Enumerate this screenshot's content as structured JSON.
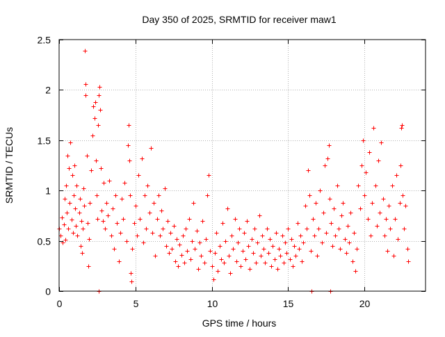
{
  "chart_data": {
    "type": "scatter",
    "title": "Day 350 of 2025, SRMTID for receiver maw1",
    "xlabel": "GPS time / hours",
    "ylabel": "SRMTID / TECUs",
    "xlim": [
      0,
      24
    ],
    "ylim": [
      0,
      2.5
    ],
    "x_ticks": [
      0,
      5,
      10,
      15,
      20
    ],
    "y_ticks": [
      0,
      0.5,
      1,
      1.5,
      2,
      2.5
    ],
    "x_tick_labels": [
      "0",
      "5",
      "10",
      "15",
      "20"
    ],
    "y_tick_labels": [
      "0",
      "0.5",
      "1",
      "1.5",
      "2",
      "2.5"
    ],
    "grid": true,
    "marker": "+",
    "series": [
      {
        "name": "SRMTID",
        "color": "#ff0000",
        "points": [
          [
            0.0,
            0.62
          ],
          [
            0.1,
            0.55
          ],
          [
            0.2,
            0.73
          ],
          [
            0.25,
            0.48
          ],
          [
            0.3,
            0.66
          ],
          [
            0.35,
            0.92
          ],
          [
            0.4,
            0.51
          ],
          [
            0.45,
            1.05
          ],
          [
            0.5,
            0.78
          ],
          [
            0.55,
            1.35
          ],
          [
            0.6,
            0.62
          ],
          [
            0.65,
            1.22
          ],
          [
            0.7,
            0.88
          ],
          [
            0.75,
            1.48
          ],
          [
            0.8,
            0.71
          ],
          [
            0.85,
            1.15
          ],
          [
            0.9,
            0.58
          ],
          [
            0.95,
            0.95
          ],
          [
            1.0,
            1.25
          ],
          [
            1.05,
            0.82
          ],
          [
            1.1,
            0.65
          ],
          [
            1.15,
            1.05
          ],
          [
            1.2,
            0.55
          ],
          [
            1.3,
            0.78
          ],
          [
            1.35,
            0.92
          ],
          [
            1.4,
            0.45
          ],
          [
            1.45,
            0.7
          ],
          [
            1.5,
            0.38
          ],
          [
            1.55,
            0.62
          ],
          [
            1.6,
            1.02
          ],
          [
            1.65,
            0.85
          ],
          [
            1.7,
            2.39
          ],
          [
            1.72,
            2.06
          ],
          [
            1.75,
            1.95
          ],
          [
            1.8,
            1.35
          ],
          [
            1.85,
            0.68
          ],
          [
            1.9,
            0.25
          ],
          [
            1.95,
            0.52
          ],
          [
            2.0,
            0.88
          ],
          [
            2.1,
            1.2
          ],
          [
            2.2,
            1.55
          ],
          [
            2.25,
            1.84
          ],
          [
            2.3,
            1.72
          ],
          [
            2.35,
            1.88
          ],
          [
            2.4,
            1.3
          ],
          [
            2.45,
            0.95
          ],
          [
            2.5,
            0.72
          ],
          [
            2.55,
            1.65
          ],
          [
            2.6,
            1.95
          ],
          [
            2.65,
            2.03
          ],
          [
            2.7,
            1.8
          ],
          [
            2.75,
            1.22
          ],
          [
            2.8,
            0.8
          ],
          [
            2.85,
            0.7
          ],
          [
            2.9,
            1.08
          ],
          [
            3.0,
            0.62
          ],
          [
            3.1,
            0.88
          ],
          [
            3.2,
            0.75
          ],
          [
            3.3,
            1.1
          ],
          [
            3.4,
            0.55
          ],
          [
            3.5,
            0.82
          ],
          [
            3.6,
            0.42
          ],
          [
            3.7,
            0.95
          ],
          [
            3.8,
            0.68
          ],
          [
            3.9,
            0.3
          ],
          [
            4.0,
            0.58
          ],
          [
            4.1,
            0.92
          ],
          [
            4.2,
            0.72
          ],
          [
            4.3,
            1.08
          ],
          [
            4.4,
            0.5
          ],
          [
            4.5,
            1.45
          ],
          [
            4.55,
            1.65
          ],
          [
            4.6,
            1.3
          ],
          [
            4.65,
            0.95
          ],
          [
            4.7,
            0.18
          ],
          [
            4.75,
            0.1
          ],
          [
            4.8,
            0.42
          ],
          [
            4.9,
            0.68
          ],
          [
            5.0,
            0.85
          ],
          [
            5.1,
            0.55
          ],
          [
            5.2,
            1.15
          ],
          [
            5.3,
            0.72
          ],
          [
            5.4,
            1.32
          ],
          [
            5.5,
            0.48
          ],
          [
            5.6,
            0.95
          ],
          [
            5.7,
            0.62
          ],
          [
            5.8,
            1.05
          ],
          [
            5.9,
            0.78
          ],
          [
            6.0,
            1.42
          ],
          [
            6.1,
            0.58
          ],
          [
            6.2,
            0.88
          ],
          [
            6.3,
            0.35
          ],
          [
            6.4,
            0.72
          ],
          [
            6.5,
            0.95
          ],
          [
            6.6,
            0.55
          ],
          [
            6.7,
            0.8
          ],
          [
            6.8,
            0.62
          ],
          [
            6.9,
            1.02
          ],
          [
            7.0,
            0.45
          ],
          [
            7.1,
            0.7
          ],
          [
            7.2,
            0.38
          ],
          [
            7.3,
            0.58
          ],
          [
            7.4,
            0.42
          ],
          [
            7.5,
            0.65
          ],
          [
            7.6,
            0.3
          ],
          [
            7.7,
            0.52
          ],
          [
            7.8,
            0.25
          ],
          [
            7.9,
            0.46
          ],
          [
            8.0,
            0.36
          ],
          [
            8.1,
            0.55
          ],
          [
            8.2,
            0.28
          ],
          [
            8.3,
            0.62
          ],
          [
            8.4,
            0.4
          ],
          [
            8.5,
            0.72
          ],
          [
            8.6,
            0.32
          ],
          [
            8.7,
            0.5
          ],
          [
            8.8,
            0.88
          ],
          [
            8.9,
            0.42
          ],
          [
            9.0,
            0.6
          ],
          [
            9.1,
            0.22
          ],
          [
            9.2,
            0.48
          ],
          [
            9.3,
            0.35
          ],
          [
            9.4,
            0.7
          ],
          [
            9.5,
            0.28
          ],
          [
            9.6,
            0.52
          ],
          [
            9.7,
            0.95
          ],
          [
            9.8,
            1.15
          ],
          [
            9.9,
            0.4
          ],
          [
            10.0,
            0.25
          ],
          [
            10.1,
            0.12
          ],
          [
            10.2,
            0.38
          ],
          [
            10.3,
            0.58
          ],
          [
            10.4,
            0.2
          ],
          [
            10.5,
            0.45
          ],
          [
            10.6,
            0.32
          ],
          [
            10.7,
            0.68
          ],
          [
            10.8,
            0.28
          ],
          [
            10.9,
            0.5
          ],
          [
            11.0,
            0.82
          ],
          [
            11.1,
            0.35
          ],
          [
            11.2,
            0.18
          ],
          [
            11.3,
            0.55
          ],
          [
            11.4,
            0.42
          ],
          [
            11.5,
            0.72
          ],
          [
            11.6,
            0.3
          ],
          [
            11.7,
            0.48
          ],
          [
            11.8,
            0.62
          ],
          [
            11.9,
            0.25
          ],
          [
            12.0,
            0.4
          ],
          [
            12.1,
            0.58
          ],
          [
            12.2,
            0.32
          ],
          [
            12.3,
            0.7
          ],
          [
            12.4,
            0.45
          ],
          [
            12.5,
            0.22
          ],
          [
            12.6,
            0.52
          ],
          [
            12.7,
            0.38
          ],
          [
            12.8,
            0.62
          ],
          [
            12.9,
            0.28
          ],
          [
            13.0,
            0.48
          ],
          [
            13.1,
            0.75
          ],
          [
            13.2,
            0.35
          ],
          [
            13.3,
            0.55
          ],
          [
            13.4,
            0.42
          ],
          [
            13.5,
            0.28
          ],
          [
            13.6,
            0.62
          ],
          [
            13.7,
            0.38
          ],
          [
            13.8,
            0.52
          ],
          [
            13.9,
            0.25
          ],
          [
            14.0,
            0.45
          ],
          [
            14.1,
            0.32
          ],
          [
            14.2,
            0.58
          ],
          [
            14.3,
            0.22
          ],
          [
            14.4,
            0.42
          ],
          [
            14.5,
            0.35
          ],
          [
            14.6,
            0.55
          ],
          [
            14.7,
            0.28
          ],
          [
            14.8,
            0.48
          ],
          [
            14.9,
            0.38
          ],
          [
            15.0,
            0.62
          ],
          [
            15.1,
            0.32
          ],
          [
            15.2,
            0.52
          ],
          [
            15.3,
            0.25
          ],
          [
            15.4,
            0.45
          ],
          [
            15.5,
            0.35
          ],
          [
            15.6,
            0.68
          ],
          [
            15.7,
            0.42
          ],
          [
            15.8,
            0.55
          ],
          [
            15.9,
            0.3
          ],
          [
            16.0,
            0.48
          ],
          [
            16.1,
            0.85
          ],
          [
            16.2,
            0.62
          ],
          [
            16.3,
            1.2
          ],
          [
            16.4,
            0.95
          ],
          [
            16.5,
            0.4
          ],
          [
            16.6,
            0.72
          ],
          [
            16.7,
            0.55
          ],
          [
            16.8,
            0.88
          ],
          [
            16.9,
            0.35
          ],
          [
            17.0,
            0.62
          ],
          [
            17.1,
            1.0
          ],
          [
            17.2,
            0.48
          ],
          [
            17.3,
            0.78
          ],
          [
            17.4,
            1.25
          ],
          [
            17.5,
            0.58
          ],
          [
            17.6,
            1.32
          ],
          [
            17.65,
            1.45
          ],
          [
            17.7,
            0.92
          ],
          [
            17.8,
            0.68
          ],
          [
            17.9,
            0.45
          ],
          [
            18.0,
            0.82
          ],
          [
            18.1,
            0.55
          ],
          [
            18.2,
            1.05
          ],
          [
            18.3,
            0.62
          ],
          [
            18.4,
            0.42
          ],
          [
            18.5,
            0.75
          ],
          [
            18.6,
            0.88
          ],
          [
            18.7,
            0.52
          ],
          [
            18.8,
            0.38
          ],
          [
            18.9,
            0.65
          ],
          [
            19.0,
            0.48
          ],
          [
            19.1,
            0.78
          ],
          [
            19.2,
            0.3
          ],
          [
            19.3,
            0.58
          ],
          [
            19.4,
            0.2
          ],
          [
            19.5,
            0.42
          ],
          [
            19.6,
            1.05
          ],
          [
            19.7,
            0.82
          ],
          [
            19.8,
            1.25
          ],
          [
            19.9,
            1.5
          ],
          [
            20.0,
            0.95
          ],
          [
            20.1,
            1.18
          ],
          [
            20.2,
            0.72
          ],
          [
            20.3,
            1.38
          ],
          [
            20.4,
            0.55
          ],
          [
            20.5,
            0.88
          ],
          [
            20.6,
            1.62
          ],
          [
            20.7,
            1.05
          ],
          [
            20.8,
            0.65
          ],
          [
            20.9,
            1.3
          ],
          [
            21.0,
            0.78
          ],
          [
            21.1,
            1.48
          ],
          [
            21.2,
            0.92
          ],
          [
            21.3,
            0.55
          ],
          [
            21.4,
            0.72
          ],
          [
            21.5,
            0.4
          ],
          [
            21.6,
            0.85
          ],
          [
            21.7,
            0.62
          ],
          [
            21.8,
            1.05
          ],
          [
            21.9,
            0.35
          ],
          [
            22.0,
            0.72
          ],
          [
            22.1,
            1.15
          ],
          [
            22.2,
            0.52
          ],
          [
            22.3,
            0.88
          ],
          [
            22.35,
            1.25
          ],
          [
            22.4,
            1.62
          ],
          [
            22.45,
            1.65
          ],
          [
            22.5,
            0.95
          ],
          [
            22.6,
            0.62
          ],
          [
            22.7,
            0.85
          ],
          [
            22.8,
            0.42
          ],
          [
            22.85,
            0.3
          ],
          [
            16.55,
            0.0
          ],
          [
            17.75,
            0.0
          ],
          [
            2.6,
            0.0
          ]
        ]
      }
    ]
  }
}
